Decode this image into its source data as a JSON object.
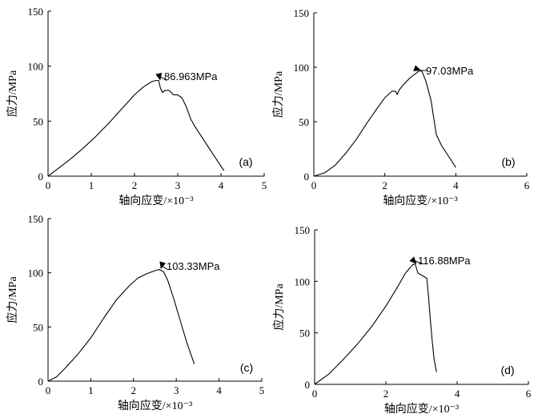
{
  "chart_data": [
    {
      "type": "line",
      "panel_label": "(a)",
      "xlabel": "轴向应变/×10⁻³",
      "ylabel": "应力/MPa",
      "xlim": [
        0,
        5
      ],
      "ylim": [
        0,
        150
      ],
      "xticks": [
        0,
        1,
        2,
        3,
        4,
        5
      ],
      "yticks": [
        0,
        50,
        100,
        150
      ],
      "x": [
        0,
        0.2,
        0.5,
        0.8,
        1.1,
        1.4,
        1.7,
        2.0,
        2.2,
        2.4,
        2.5,
        2.56,
        2.6,
        2.65,
        2.7,
        2.8,
        2.9,
        3.0,
        3.1,
        3.2,
        3.3,
        3.4,
        3.6,
        3.8,
        4.0,
        4.07
      ],
      "y": [
        0,
        6,
        15,
        25,
        36,
        48,
        61,
        74,
        81,
        86,
        87,
        87,
        80,
        76,
        78,
        78,
        74,
        74,
        71,
        63,
        52,
        45,
        33,
        21,
        9,
        5
      ],
      "annotation": {
        "text": "86.963MPa",
        "x": 2.56,
        "y": 86.963
      }
    },
    {
      "type": "line",
      "panel_label": "(b)",
      "xlabel": "轴向应变/×10⁻³",
      "ylabel": "应力/MPa",
      "xlim": [
        0,
        6
      ],
      "ylim": [
        0,
        150
      ],
      "xticks": [
        0,
        2,
        4,
        6
      ],
      "yticks": [
        0,
        50,
        100,
        150
      ],
      "x": [
        0,
        0.3,
        0.6,
        0.9,
        1.2,
        1.5,
        1.8,
        2.0,
        2.2,
        2.3,
        2.35,
        2.4,
        2.5,
        2.7,
        2.9,
        2.98,
        3.05,
        3.15,
        3.3,
        3.45,
        3.6,
        3.8,
        4.0
      ],
      "y": [
        0,
        3,
        10,
        21,
        34,
        49,
        63,
        72,
        78,
        78,
        75,
        79,
        83,
        90,
        95,
        97,
        96,
        88,
        70,
        38,
        28,
        18,
        8
      ],
      "annotation": {
        "text": "97.03MPa",
        "x": 2.98,
        "y": 97.03
      }
    },
    {
      "type": "line",
      "panel_label": "(c)",
      "xlabel": "轴向应变/×10⁻³",
      "ylabel": "应力/MPa",
      "xlim": [
        0,
        5
      ],
      "ylim": [
        0,
        150
      ],
      "xticks": [
        0,
        1,
        2,
        3,
        4,
        5
      ],
      "yticks": [
        0,
        50,
        100,
        150
      ],
      "x": [
        0,
        0.2,
        0.4,
        0.7,
        1.0,
        1.3,
        1.6,
        1.9,
        2.1,
        2.3,
        2.5,
        2.6,
        2.7,
        2.8,
        2.95,
        3.1,
        3.25,
        3.42
      ],
      "y": [
        0,
        4,
        12,
        25,
        40,
        58,
        75,
        88,
        95,
        99,
        102,
        103,
        101,
        93,
        75,
        55,
        35,
        16
      ],
      "annotation": {
        "text": "103.33MPa",
        "x": 2.6,
        "y": 103.33
      }
    },
    {
      "type": "line",
      "panel_label": "(d)",
      "xlabel": "轴向应变/×10⁻³",
      "ylabel": "应力/MPa",
      "xlim": [
        0,
        6
      ],
      "ylim": [
        0,
        150
      ],
      "xticks": [
        0,
        2,
        4,
        6
      ],
      "yticks": [
        0,
        50,
        100,
        150
      ],
      "x": [
        0,
        0.4,
        0.8,
        1.2,
        1.6,
        2.0,
        2.3,
        2.55,
        2.75,
        2.82,
        2.9,
        3.0,
        3.05,
        3.15,
        3.2,
        3.25,
        3.3,
        3.35,
        3.42
      ],
      "y": [
        0,
        10,
        24,
        39,
        56,
        76,
        93,
        108,
        116,
        117,
        108,
        106,
        105,
        103,
        84,
        62,
        42,
        25,
        12
      ],
      "annotation": {
        "text": "116.88MPa",
        "x": 2.82,
        "y": 116.88
      }
    }
  ]
}
